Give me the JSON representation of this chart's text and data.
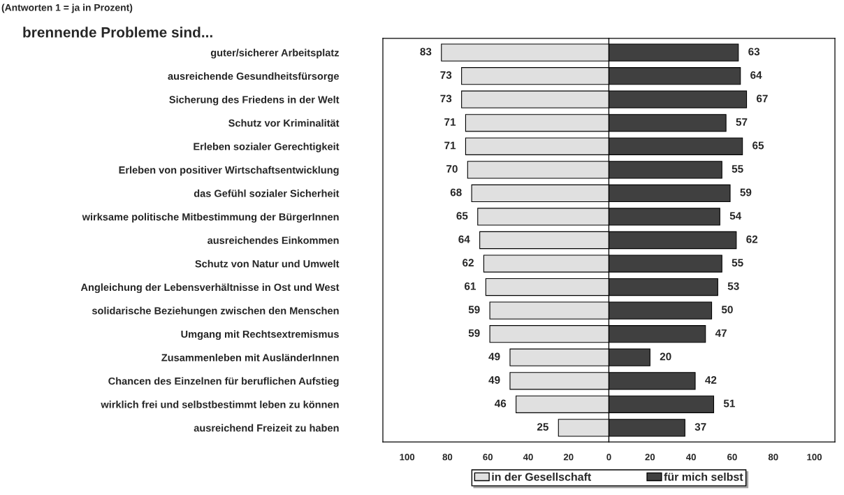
{
  "chart_data": [
    {
      "type": "bar",
      "orientation": "horizontal",
      "title": "brennende Probleme sind...",
      "annotations": [
        "(Antworten 1 = ja in Prozent)"
      ],
      "categories": [
        "guter/sicherer Arbeitsplatz",
        "ausreichende Gesundheitsfürsorge",
        "Sicherung des Friedens in der Welt",
        "Schutz vor Kriminalität",
        "Erleben sozialer Gerechtigkeit",
        "Erleben von positiver Wirtschaftsentwicklung",
        "das Gefühl sozialer Sicherheit",
        "wirksame politische Mitbestimmung der BürgerInnen",
        "ausreichendes Einkommen",
        "Schutz von Natur und Umwelt",
        "Angleichung der Lebensverhältnisse in Ost und West",
        "solidarische Beziehungen zwischen den Menschen",
        "Umgang mit Rechtsextremismus",
        "Zusammenleben mit AusländerInnen",
        "Chancen des Einzelnen für beruflichen Aufstieg",
        "wirklich frei und selbstbestimmt leben zu können",
        "ausreichend Freizeit zu haben"
      ],
      "series": [
        {
          "name": "in der Gesellschaft",
          "color": "#e0e0e0",
          "values": [
            83,
            73,
            73,
            71,
            71,
            70,
            68,
            65,
            64,
            62,
            61,
            59,
            59,
            49,
            49,
            46,
            25
          ]
        }
      ],
      "data_labels": true,
      "xlim": [
        112,
        0
      ],
      "xticks": [
        100,
        80,
        60,
        40,
        20
      ],
      "grid": false,
      "legend": "bottom"
    },
    {
      "type": "bar",
      "orientation": "horizontal",
      "categories": [
        null,
        null,
        null,
        null,
        null,
        null,
        null,
        null,
        null,
        null,
        null,
        null,
        null,
        null,
        null,
        null,
        null
      ],
      "series": [
        {
          "name": "für mich selbst",
          "color": "#404040",
          "values": [
            63,
            64,
            67,
            57,
            65,
            55,
            59,
            54,
            62,
            55,
            53,
            50,
            47,
            20,
            42,
            51,
            37
          ]
        }
      ],
      "data_labels": true,
      "xlim": [
        0,
        110
      ],
      "xticks": [
        0,
        20,
        40,
        60,
        80,
        100
      ],
      "tick_labels": "x",
      "grid": false,
      "legend": "bottom"
    }
  ]
}
